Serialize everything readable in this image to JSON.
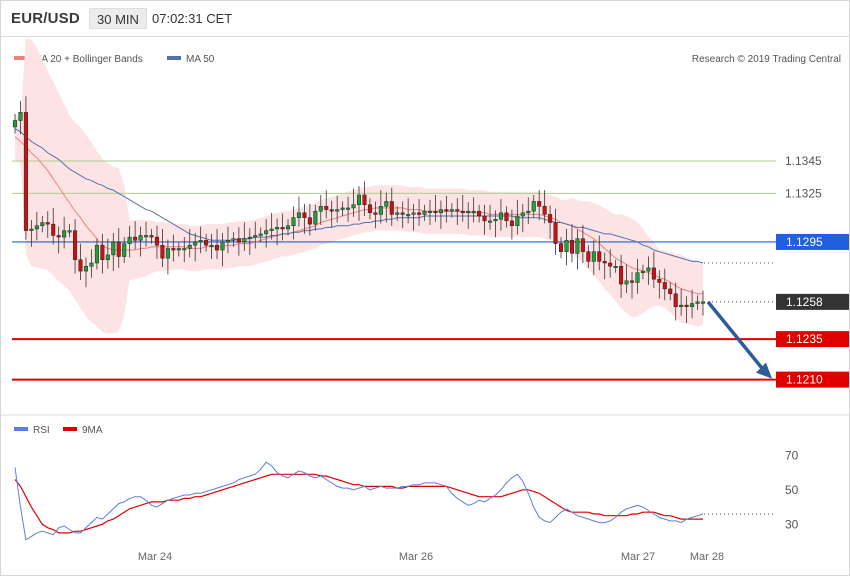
{
  "header": {
    "pair": "EUR/USD",
    "timeframe": "30 MIN",
    "time": "07:02:31 CET"
  },
  "legend": {
    "bollinger": "MA 20 + Bollinger Bands",
    "ma50": "MA 50",
    "credit": "Research © 2019 Trading Central",
    "rsi": "RSI",
    "rsi_ma": "9MA"
  },
  "colors": {
    "up_candle": "#1f9e3a",
    "down_candle": "#cc1111",
    "ma20": "#f08080",
    "band_fill": "#fde3e3",
    "ma50": "#5570b0",
    "green_level": "#a8d08d",
    "red_level": "#e00000",
    "blue_level": "#1f5fe0",
    "arrow": "#2e5b9a",
    "rsi": "#5b7fdd",
    "rsi_ma": "#e00000",
    "current_box": "#333333"
  },
  "chart_data": [
    {
      "type": "candlestick",
      "title": "",
      "x_labels": [
        "Mar 24",
        "Mar 26",
        "Mar 27",
        "Mar 28"
      ],
      "y_range": [
        1.119,
        1.1395
      ],
      "levels": [
        {
          "value": 1.1345,
          "label": "1.1345",
          "style": "resistance"
        },
        {
          "value": 1.1325,
          "label": "1.1325",
          "style": "resistance"
        },
        {
          "value": 1.1295,
          "label": "1.1295",
          "style": "pivot"
        },
        {
          "value": 1.1258,
          "label": "1.1258",
          "style": "current"
        },
        {
          "value": 1.1235,
          "label": "1.1235",
          "style": "support"
        },
        {
          "value": 1.121,
          "label": "1.1210",
          "style": "support"
        }
      ],
      "forecast_arrow": {
        "from": 1.1258,
        "to": 1.121
      },
      "closes": [
        1.137,
        1.1375,
        1.1302,
        1.1303,
        1.1305,
        1.1307,
        1.1306,
        1.1299,
        1.1298,
        1.1302,
        1.1302,
        1.1284,
        1.1277,
        1.128,
        1.1282,
        1.1293,
        1.1284,
        1.1287,
        1.1295,
        1.1286,
        1.1294,
        1.1298,
        1.1296,
        1.1299,
        1.1299,
        1.1298,
        1.1293,
        1.1285,
        1.1291,
        1.129,
        1.1291,
        1.1291,
        1.1293,
        1.1295,
        1.1296,
        1.1293,
        1.1293,
        1.129,
        1.1295,
        1.1296,
        1.1297,
        1.1295,
        1.1297,
        1.1298,
        1.1299,
        1.13,
        1.1302,
        1.1303,
        1.1304,
        1.1303,
        1.1305,
        1.131,
        1.1313,
        1.131,
        1.1306,
        1.1314,
        1.1317,
        1.1315,
        1.1314,
        1.1315,
        1.1316,
        1.1316,
        1.1318,
        1.1324,
        1.1318,
        1.1313,
        1.1312,
        1.1317,
        1.132,
        1.1312,
        1.1313,
        1.1312,
        1.1312,
        1.1313,
        1.1312,
        1.1314,
        1.1314,
        1.1313,
        1.1315,
        1.1314,
        1.1315,
        1.1314,
        1.1313,
        1.1314,
        1.1314,
        1.1311,
        1.1308,
        1.1308,
        1.1309,
        1.1313,
        1.1308,
        1.1305,
        1.1311,
        1.1313,
        1.1314,
        1.132,
        1.1317,
        1.1312,
        1.1307,
        1.1294,
        1.1289,
        1.1296,
        1.1288,
        1.1297,
        1.1289,
        1.1283,
        1.1289,
        1.1283,
        1.1282,
        1.128,
        1.128,
        1.1269,
        1.1271,
        1.127,
        1.1276,
        1.1277,
        1.1279,
        1.1272,
        1.127,
        1.1266,
        1.1263,
        1.1255,
        1.1256,
        1.1255,
        1.1257,
        1.1258,
        1.1258
      ],
      "ma50": [
        1.1365,
        1.1363,
        1.136,
        1.1357,
        1.1355,
        1.1353,
        1.135,
        1.1348,
        1.1346,
        1.1343,
        1.134,
        1.1338,
        1.1336,
        1.1334,
        1.1333,
        1.1331,
        1.133,
        1.1328,
        1.1327,
        1.1325,
        1.1323,
        1.1321,
        1.1319,
        1.1317,
        1.1315,
        1.1314,
        1.1312,
        1.131,
        1.1308,
        1.1306,
        1.1304,
        1.1302,
        1.13,
        1.1299,
        1.1298,
        1.1297,
        1.1296,
        1.1296,
        1.1296,
        1.1296,
        1.1296,
        1.1297,
        1.1297,
        1.1297,
        1.1298,
        1.1298,
        1.1298,
        1.1299,
        1.1299,
        1.13,
        1.13,
        1.1301,
        1.1301,
        1.1302,
        1.1302,
        1.1303,
        1.1303,
        1.1304,
        1.1304,
        1.1305,
        1.1305,
        1.1305,
        1.1306,
        1.1306,
        1.1307,
        1.1307,
        1.1308,
        1.1308,
        1.1309,
        1.1309,
        1.131,
        1.131,
        1.131,
        1.131,
        1.131,
        1.1311,
        1.1311,
        1.1311,
        1.1311,
        1.1311,
        1.1311,
        1.1311,
        1.1311,
        1.1311,
        1.1311,
        1.1311,
        1.1311,
        1.1311,
        1.1311,
        1.1311,
        1.1311,
        1.1311,
        1.131,
        1.131,
        1.131,
        1.131,
        1.131,
        1.1309,
        1.1308,
        1.1307,
        1.1307,
        1.1306,
        1.1305,
        1.1304,
        1.1304,
        1.1303,
        1.1302,
        1.1301,
        1.13,
        1.13,
        1.1299,
        1.1298,
        1.1297,
        1.1296,
        1.1295,
        1.1293,
        1.1292,
        1.129,
        1.1289,
        1.1288,
        1.1287,
        1.1286,
        1.1285,
        1.1284,
        1.1283,
        1.1283,
        1.1282
      ],
      "ma20": [
        1.136,
        1.1357,
        1.1354,
        1.135,
        1.1347,
        1.1343,
        1.1339,
        1.1334,
        1.1329,
        1.1324,
        1.1319,
        1.1314,
        1.131,
        1.1305,
        1.1301,
        1.1297,
        1.1293,
        1.1291,
        1.129,
        1.129,
        1.129,
        1.129,
        1.129,
        1.1291,
        1.1291,
        1.1292,
        1.1292,
        1.1292,
        1.1292,
        1.1292,
        1.1292,
        1.1292,
        1.1291,
        1.1291,
        1.1291,
        1.1292,
        1.1292,
        1.1292,
        1.1292,
        1.1293,
        1.1293,
        1.1294,
        1.1294,
        1.1294,
        1.1295,
        1.1296,
        1.1297,
        1.1298,
        1.1299,
        1.13,
        1.13,
        1.1301,
        1.1302,
        1.1303,
        1.1304,
        1.1305,
        1.1307,
        1.1308,
        1.1309,
        1.131,
        1.1311,
        1.1312,
        1.1313,
        1.1314,
        1.1315,
        1.1315,
        1.1316,
        1.1316,
        1.1316,
        1.1316,
        1.1316,
        1.1316,
        1.1315,
        1.1315,
        1.1315,
        1.1314,
        1.1314,
        1.1314,
        1.1314,
        1.1314,
        1.1314,
        1.1314,
        1.1314,
        1.1313,
        1.1313,
        1.1313,
        1.1313,
        1.1312,
        1.1312,
        1.1312,
        1.1312,
        1.1312,
        1.1312,
        1.1312,
        1.1312,
        1.1312,
        1.1312,
        1.1311,
        1.131,
        1.1309,
        1.1307,
        1.1306,
        1.1305,
        1.1303,
        1.1301,
        1.1299,
        1.1297,
        1.1294,
        1.1291,
        1.1288,
        1.1285,
        1.1283,
        1.1281,
        1.1279,
        1.1278,
        1.1277,
        1.1276,
        1.1275,
        1.1273,
        1.1272,
        1.127,
        1.1268,
        1.1266,
        1.1265,
        1.1264,
        1.1263,
        1.1263
      ]
    },
    {
      "type": "line",
      "title": "",
      "ylim": [
        18,
        76
      ],
      "y_ticks": [
        70,
        50,
        30
      ],
      "reference_level": 36,
      "series": [
        {
          "name": "RSI",
          "values": [
            63,
            40,
            21,
            23,
            25,
            26,
            25,
            24,
            28,
            29,
            27,
            25,
            25,
            28,
            31,
            34,
            33,
            36,
            39,
            42,
            43,
            45,
            46,
            46,
            44,
            41,
            40,
            42,
            44,
            45,
            46,
            47,
            47,
            48,
            48,
            49,
            50,
            51,
            52,
            53,
            54,
            56,
            57,
            58,
            59,
            62,
            66,
            64,
            60,
            58,
            57,
            59,
            61,
            60,
            58,
            57,
            58,
            56,
            54,
            52,
            51,
            51,
            50,
            51,
            52,
            50,
            51,
            52,
            51,
            51,
            51,
            52,
            52,
            53,
            53,
            54,
            54,
            54,
            53,
            52,
            48,
            45,
            43,
            41,
            42,
            44,
            43,
            45,
            47,
            50,
            54,
            57,
            59,
            55,
            48,
            40,
            34,
            32,
            31,
            34,
            37,
            39,
            37,
            35,
            34,
            33,
            32,
            31,
            31,
            32,
            34,
            37,
            39,
            40,
            41,
            40,
            38,
            36,
            34,
            33,
            32,
            32,
            31,
            33,
            34,
            35,
            36
          ]
        },
        {
          "name": "9MA",
          "values": [
            56,
            52,
            46,
            40,
            35,
            30,
            28,
            27,
            25,
            25,
            25,
            26,
            26,
            27,
            28,
            29,
            30,
            32,
            33,
            35,
            37,
            39,
            40,
            41,
            42,
            43,
            43,
            43,
            44,
            44,
            44,
            45,
            45,
            46,
            46,
            47,
            48,
            49,
            50,
            51,
            52,
            53,
            54,
            55,
            56,
            57,
            58,
            59,
            59,
            59,
            59,
            59,
            59,
            59,
            59,
            59,
            58,
            58,
            57,
            56,
            55,
            54,
            53,
            53,
            52,
            52,
            52,
            52,
            52,
            52,
            51,
            51,
            52,
            52,
            52,
            52,
            52,
            52,
            52,
            52,
            51,
            50,
            49,
            48,
            47,
            46,
            46,
            46,
            46,
            46,
            47,
            48,
            49,
            50,
            50,
            49,
            48,
            46,
            44,
            42,
            40,
            38,
            37,
            37,
            37,
            37,
            36,
            36,
            35,
            35,
            35,
            35,
            35,
            36,
            36,
            37,
            37,
            37,
            36,
            35,
            35,
            34,
            33,
            33,
            33,
            33,
            33
          ]
        }
      ]
    }
  ]
}
